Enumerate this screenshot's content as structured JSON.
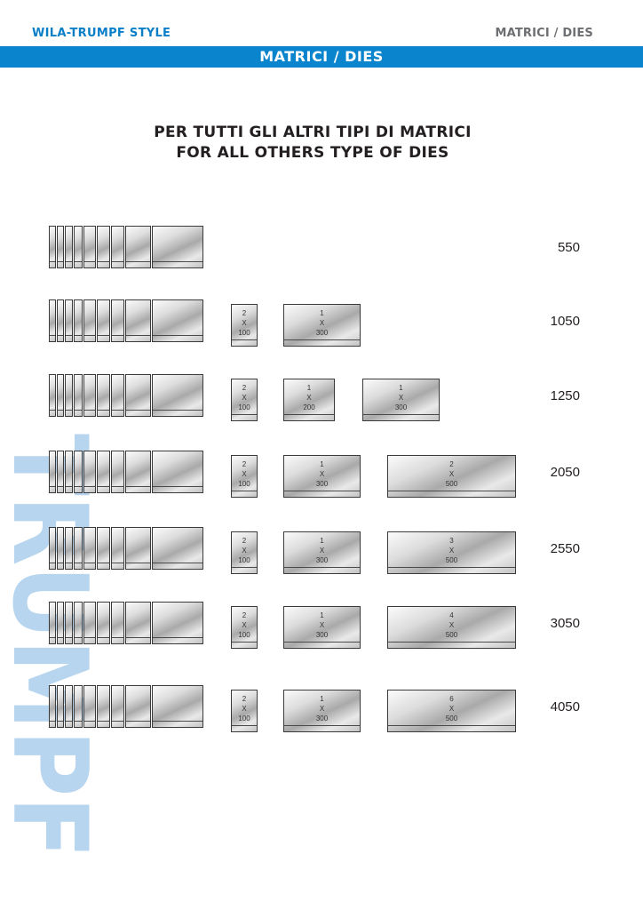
{
  "header": {
    "left_label": "WILA-TRUMPF STYLE",
    "right_label": "MATRICI / DIES",
    "band_title": "MATRICI / DIES"
  },
  "heading": {
    "line1": "PER TUTTI GLI ALTRI TIPI DI MATRICI",
    "line2": "FOR ALL OTHERS TYPE OF DIES"
  },
  "watermark": {
    "text": "TRUMPF",
    "color": "#b7d5ee"
  },
  "colors": {
    "band": "#0a84cc",
    "brand_text": "#0a7fc8",
    "gray_text": "#6d6e71"
  },
  "sets": [
    {
      "length": "550",
      "extras": []
    },
    {
      "length": "1050",
      "extras": [
        {
          "qty": "2",
          "x": "X",
          "size": "100"
        },
        {
          "qty": "1",
          "x": "X",
          "size": "300"
        }
      ]
    },
    {
      "length": "1250",
      "extras": [
        {
          "qty": "2",
          "x": "X",
          "size": "100"
        },
        {
          "qty": "1",
          "x": "X",
          "size": "200"
        },
        {
          "qty": "1",
          "x": "X",
          "size": "300"
        }
      ]
    },
    {
      "length": "2050",
      "extras": [
        {
          "qty": "2",
          "x": "X",
          "size": "100"
        },
        {
          "qty": "1",
          "x": "X",
          "size": "300"
        },
        {
          "qty": "2",
          "x": "X",
          "size": "500"
        }
      ]
    },
    {
      "length": "2550",
      "extras": [
        {
          "qty": "2",
          "x": "X",
          "size": "100"
        },
        {
          "qty": "1",
          "x": "X",
          "size": "300"
        },
        {
          "qty": "3",
          "x": "X",
          "size": "500"
        }
      ]
    },
    {
      "length": "3050",
      "extras": [
        {
          "qty": "2",
          "x": "X",
          "size": "100"
        },
        {
          "qty": "1",
          "x": "X",
          "size": "300"
        },
        {
          "qty": "4",
          "x": "X",
          "size": "500"
        }
      ]
    },
    {
      "length": "4050",
      "extras": [
        {
          "qty": "2",
          "x": "X",
          "size": "100"
        },
        {
          "qty": "1",
          "x": "X",
          "size": "300"
        },
        {
          "qty": "6",
          "x": "X",
          "size": "500"
        }
      ]
    }
  ]
}
